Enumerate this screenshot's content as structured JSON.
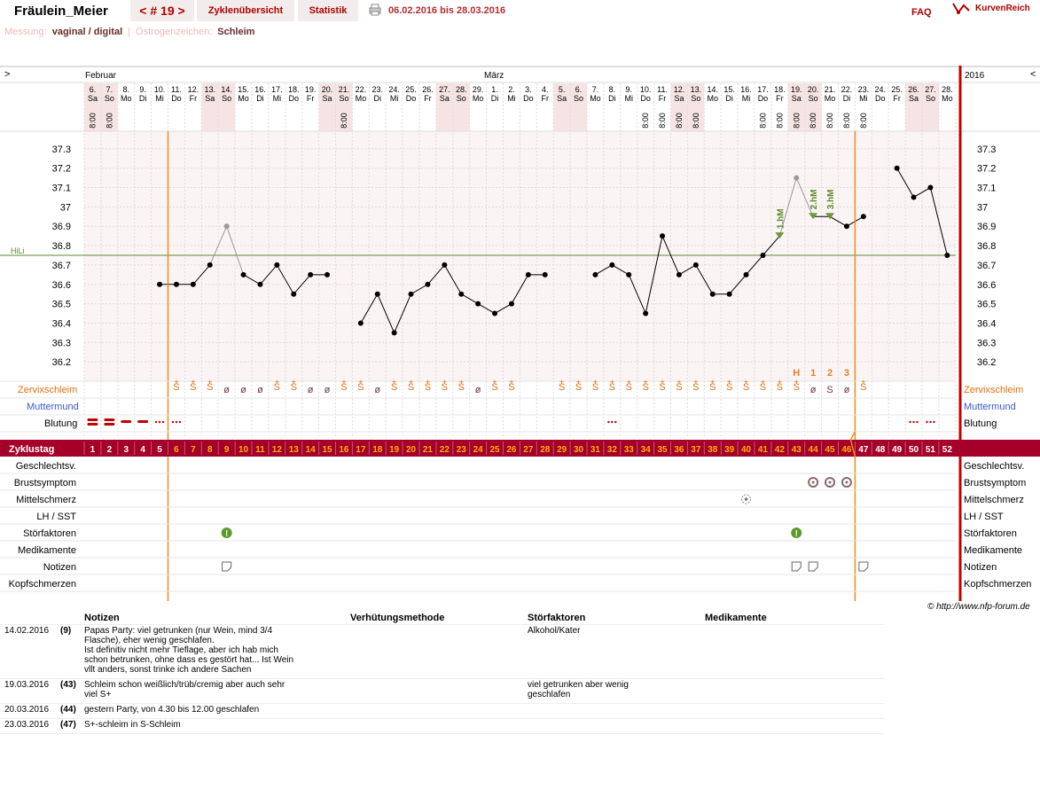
{
  "header": {
    "username": "Fräulein_Meier",
    "cycle_tab": "< # 19 >",
    "overview_tab": "Zyklenübersicht",
    "stats_tab": "Statistik",
    "date_range": "06.02.2016 bis 28.03.2016",
    "faq": "FAQ",
    "brand": "KurvenReich",
    "print_icon": "printer-icon"
  },
  "subbar": {
    "measurement_label": "Messung:",
    "measurement_value": "vaginal / digital",
    "estrogen_label": "Östrogenzeichen:",
    "estrogen_value": "Schleim"
  },
  "chart_data": {
    "type": "line",
    "nav_left": ">",
    "nav_right": "<",
    "month_labels": [
      "Februar",
      "März"
    ],
    "year_label": "2016",
    "day_numbers": [
      "6.",
      "7.",
      "8.",
      "9.",
      "10.",
      "11.",
      "12.",
      "13.",
      "14.",
      "15.",
      "16.",
      "17.",
      "18.",
      "19.",
      "20.",
      "21.",
      "22.",
      "23.",
      "24.",
      "25.",
      "26.",
      "27.",
      "28.",
      "29.",
      "1.",
      "2.",
      "3.",
      "4.",
      "5.",
      "6.",
      "7.",
      "8.",
      "9.",
      "10.",
      "11.",
      "12.",
      "13.",
      "14.",
      "15.",
      "16.",
      "17.",
      "18.",
      "19.",
      "20.",
      "21.",
      "22.",
      "23.",
      "24.",
      "25.",
      "26.",
      "27.",
      "28."
    ],
    "weekdays": [
      "Sa",
      "So",
      "Mo",
      "Di",
      "Mi",
      "Do",
      "Fr",
      "Sa",
      "So",
      "Mo",
      "Di",
      "Mi",
      "Do",
      "Fr",
      "Sa",
      "So",
      "Mo",
      "Di",
      "Mi",
      "Do",
      "Fr",
      "Sa",
      "So",
      "Mo",
      "Di",
      "Mi",
      "Do",
      "Fr",
      "Sa",
      "So",
      "Mo",
      "Di",
      "Mi",
      "Do",
      "Fr",
      "Sa",
      "So",
      "Mo",
      "Di",
      "Mi",
      "Do",
      "Fr",
      "Sa",
      "So",
      "Mo",
      "Di",
      "Mi",
      "Do",
      "Fr",
      "Sa",
      "So",
      "Mo"
    ],
    "times": [
      "8:00",
      "8:00",
      "",
      "",
      "",
      "",
      "",
      "",
      "",
      "",
      "",
      "",
      "",
      "",
      "",
      "8:00",
      "",
      "",
      "",
      "",
      "",
      "",
      "",
      "",
      "",
      "",
      "",
      "",
      "",
      "",
      "",
      "",
      "",
      "8:00",
      "8:00",
      "8:00",
      "8:00",
      "",
      "",
      "",
      "8:00",
      "8:00",
      "8:00",
      "8:00",
      "8:00",
      "8:00",
      "8:00",
      "",
      "",
      "",
      "",
      ""
    ],
    "y_ticks": [
      "37.3",
      "37.2",
      "37.1",
      "37",
      "36.9",
      "36.8",
      "36.7",
      "36.6",
      "36.5",
      "36.4",
      "36.3",
      "36.2"
    ],
    "ylim": [
      36.1,
      37.4
    ],
    "hili_label": "HiLi",
    "hili_value": 36.75,
    "temperatures": [
      null,
      null,
      null,
      null,
      36.6,
      36.6,
      36.6,
      36.7,
      36.9,
      36.65,
      36.6,
      36.7,
      36.55,
      36.65,
      36.65,
      null,
      36.4,
      36.55,
      36.35,
      36.55,
      36.6,
      36.7,
      36.55,
      36.5,
      36.45,
      36.5,
      36.65,
      36.65,
      null,
      null,
      36.65,
      36.7,
      36.65,
      36.45,
      36.85,
      36.65,
      36.7,
      36.55,
      36.55,
      36.65,
      36.75,
      36.85,
      37.15,
      36.95,
      36.95,
      36.9,
      36.95,
      null,
      37.2,
      37.05,
      37.1,
      36.75
    ],
    "excluded_days": [
      9,
      43
    ],
    "line_breaks_after": [
      9,
      43
    ],
    "higher_measurement_labels": [
      {
        "day": 42,
        "label": "1.hM"
      },
      {
        "day": 44,
        "label": "2.hM"
      },
      {
        "day": 45,
        "label": "3.hM"
      }
    ],
    "peak_labels": [
      {
        "day": 43,
        "label": "H"
      },
      {
        "day": 44,
        "label": "1"
      },
      {
        "day": 45,
        "label": "2"
      },
      {
        "day": 46,
        "label": "3"
      }
    ],
    "vertical_markers": [
      5,
      46
    ],
    "cervix_label": "Zervixschleim",
    "cervix": [
      "",
      "",
      "",
      "",
      "",
      "S+",
      "S+",
      "S+",
      "ø",
      "ø",
      "ø",
      "S+",
      "S+",
      "ø",
      "ø",
      "S+",
      "S+",
      "ø",
      "S+",
      "S+",
      "S+",
      "S+",
      "S+",
      "ø",
      "S+",
      "S+",
      "",
      "",
      "S+",
      "S+",
      "S+",
      "S+",
      "S+",
      "S+",
      "S+",
      "S+",
      "S+",
      "S+",
      "S+",
      "S+",
      "S+",
      "S+",
      "S+",
      "ø",
      "S",
      "ø",
      "S+",
      "",
      "",
      "",
      "",
      ""
    ],
    "mouth_label": "Muttermund",
    "bleeding_label": "Blutung",
    "bleeding": [
      "heavy",
      "heavy",
      "medium",
      "medium",
      "light",
      "light",
      "",
      "",
      "",
      "",
      "",
      "",
      "",
      "",
      "",
      "",
      "",
      "",
      "",
      "",
      "",
      "",
      "",
      "",
      "",
      "",
      "",
      "",
      "",
      "",
      "",
      "light",
      "",
      "",
      "",
      "",
      "",
      "",
      "",
      "",
      "",
      "",
      "",
      "",
      "",
      "",
      "",
      "",
      "",
      "light",
      "light",
      ""
    ],
    "cycle_day_label": "Zyklustag",
    "cycle_days": [
      "1",
      "2",
      "3",
      "4",
      "5",
      "6",
      "7",
      "8",
      "9",
      "10",
      "11",
      "12",
      "13",
      "14",
      "15",
      "16",
      "17",
      "18",
      "19",
      "20",
      "21",
      "22",
      "23",
      "24",
      "25",
      "26",
      "27",
      "28",
      "29",
      "30",
      "31",
      "32",
      "33",
      "34",
      "35",
      "36",
      "37",
      "38",
      "39",
      "40",
      "41",
      "42",
      "43",
      "44",
      "45",
      "46",
      "47",
      "48",
      "49",
      "50",
      "51",
      "52"
    ],
    "symptom_rows": [
      {
        "label": "Geschlechtsv.",
        "days": []
      },
      {
        "label": "Brustsymptom",
        "days": [
          44,
          45,
          46
        ],
        "icon": "breast-icon"
      },
      {
        "label": "Mittelschmerz",
        "days": [
          40
        ],
        "icon": "pain-icon"
      },
      {
        "label": "LH / SST",
        "days": []
      },
      {
        "label": "Störfaktoren",
        "days": [
          9,
          43
        ],
        "icon": "warning-icon"
      },
      {
        "label": "Medikamente",
        "days": []
      },
      {
        "label": "Notizen",
        "days": [
          9,
          43,
          44,
          47
        ],
        "icon": "note-icon"
      },
      {
        "label": "Kopfschmerzen",
        "days": []
      }
    ]
  },
  "copyright": "© http://www.nfp-forum.de",
  "notes_table": {
    "headers": [
      "Notizen",
      "Verhütungsmethode",
      "Störfaktoren",
      "Medikamente"
    ],
    "rows": [
      {
        "date": "14.02.2016",
        "day": "(9)",
        "lines": [
          "Papas Party: viel getrunken (nur Wein, mind 3/4",
          "Flasche), eher wenig geschlafen.",
          "Ist definitiv nicht mehr Tieflage, aber ich hab mich",
          "schon betrunken, ohne dass es gestört hat... Ist Wein",
          "vllt anders, sonst trinke ich andere Sachen"
        ],
        "disturb": [
          "Alkohol/Kater"
        ]
      },
      {
        "date": "19.03.2016",
        "day": "(43)",
        "lines": [
          "Schleim schon weißlich/trüb/cremig aber auch sehr",
          "viel S+"
        ],
        "disturb": [
          "viel getrunken aber wenig",
          "geschlafen"
        ]
      },
      {
        "date": "20.03.2016",
        "day": "(44)",
        "lines": [
          "gestern Party, von 4.30 bis 12.00 geschlafen"
        ],
        "disturb": []
      },
      {
        "date": "23.03.2016",
        "day": "(47)",
        "lines": [
          "S+-schleim in S-Schleim"
        ],
        "disturb": []
      }
    ]
  }
}
